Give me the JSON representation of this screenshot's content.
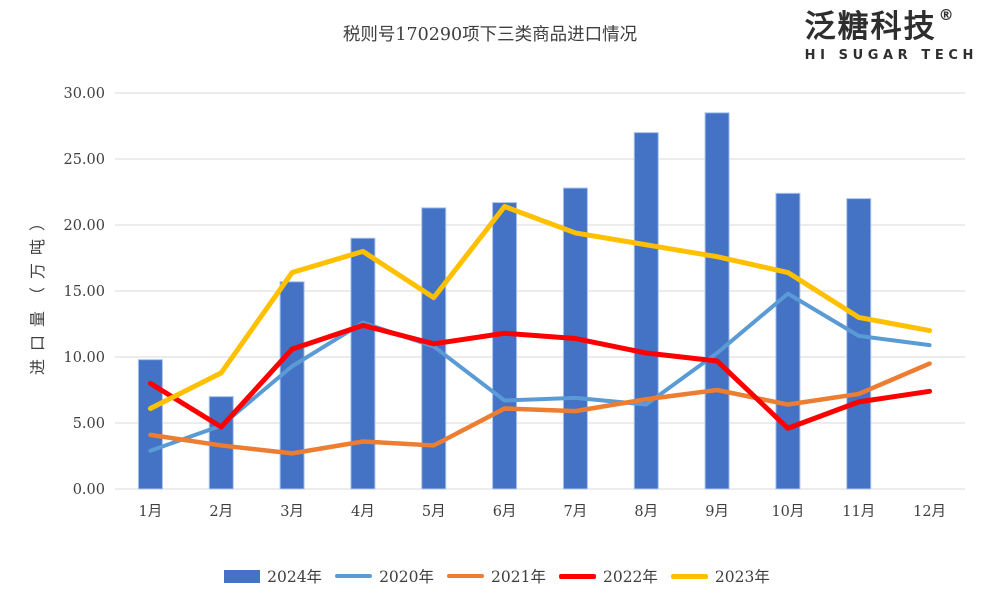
{
  "title": "税则号170290项下三类商品进口情况",
  "logo": {
    "cn": "泛糖科技",
    "registered": "®",
    "en": "HI SUGAR TECH"
  },
  "y_axis_title": "进口量（万吨）",
  "chart_data": {
    "type": "bar+line combo",
    "title": "税则号170290项下三类商品进口情况",
    "ylabel": "进口量（万吨）",
    "xlabel": "",
    "grid": "horizontal only",
    "legend_position": "bottom center",
    "gridline_color": "#d9d9d9",
    "categories": [
      "1月",
      "2月",
      "3月",
      "4月",
      "5月",
      "6月",
      "7月",
      "8月",
      "9月",
      "10月",
      "11月",
      "12月"
    ],
    "y_axis": {
      "min": 0,
      "max": 30,
      "step": 5,
      "ticks": [
        {
          "value": 0,
          "label": "0.00"
        },
        {
          "value": 5,
          "label": "5.00"
        },
        {
          "value": 10,
          "label": "10.00"
        },
        {
          "value": 15,
          "label": "15.00"
        },
        {
          "value": 20,
          "label": "20.00"
        },
        {
          "value": 25,
          "label": "25.00"
        },
        {
          "value": 30,
          "label": "30.00"
        }
      ]
    },
    "series": [
      {
        "name": "2024年",
        "type": "bar",
        "color": "#4472c4",
        "edge_color": "#a9c4ee",
        "values": [
          9.8,
          7.0,
          15.7,
          19.0,
          21.3,
          21.7,
          22.8,
          27.0,
          28.5,
          22.4,
          22.0,
          null
        ]
      },
      {
        "name": "2020年",
        "type": "line",
        "color": "#5b9bd5",
        "values": [
          2.9,
          4.8,
          9.3,
          12.6,
          10.8,
          6.7,
          6.9,
          6.4,
          10.3,
          14.8,
          11.6,
          10.9
        ]
      },
      {
        "name": "2021年",
        "type": "line",
        "color": "#ed7d31",
        "values": [
          4.1,
          3.3,
          2.7,
          3.6,
          3.3,
          6.1,
          5.9,
          6.8,
          7.5,
          6.4,
          7.2,
          9.5
        ]
      },
      {
        "name": "2022年",
        "type": "line",
        "color": "#ff0000",
        "values": [
          8.0,
          4.7,
          10.6,
          12.4,
          11.0,
          11.8,
          11.4,
          10.3,
          9.7,
          4.6,
          6.6,
          7.4
        ]
      },
      {
        "name": "2023年",
        "type": "line",
        "color": "#ffc000",
        "values": [
          6.1,
          8.8,
          16.4,
          18.0,
          14.5,
          21.4,
          19.4,
          18.5,
          17.6,
          16.4,
          13.0,
          12.0
        ]
      }
    ]
  }
}
